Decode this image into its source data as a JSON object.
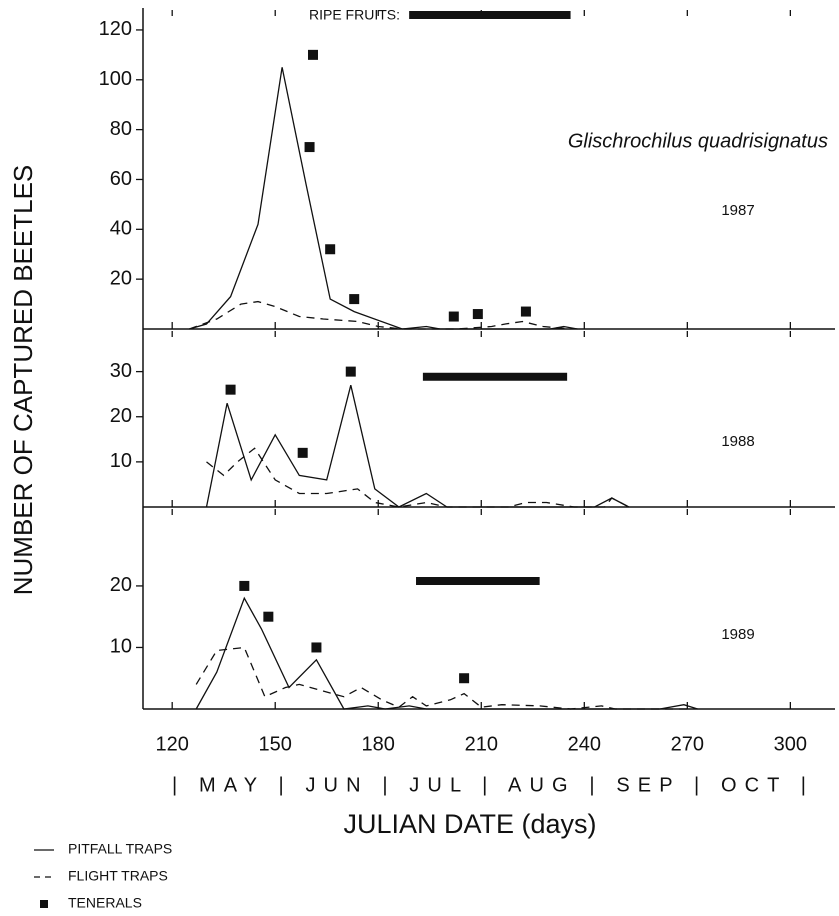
{
  "figure": {
    "y_label": "NUMBER OF CAPTURED BEETLES",
    "x_label": "JULIAN DATE (days)",
    "species": "Glischrochilus quadrisignatus",
    "ripe_label": "RIPE FRUITS:",
    "months": "| MAY | JUN | JUL | AUG | SEP | OCT |"
  },
  "x_axis": {
    "xlim": [
      111.5,
      313
    ],
    "xticks": [
      120,
      150,
      180,
      210,
      240,
      270,
      300
    ]
  },
  "legend": [
    {
      "name": "PITFALL TRAPS",
      "line_style": "solid",
      "color": "#111111"
    },
    {
      "name": "FLIGHT TRAPS",
      "line_style": "dashed",
      "color": "#111111"
    },
    {
      "name": "TENERALS",
      "marker": "square",
      "color": "#111111"
    }
  ],
  "chart_data": [
    {
      "type": "line",
      "annotation": "1987",
      "ylim": [
        0,
        128
      ],
      "yticks": [
        20,
        40,
        60,
        80,
        100,
        120
      ],
      "ripe_fruits": [
        189,
        236
      ],
      "series": [
        {
          "x": [
            125,
            130,
            137,
            145,
            152,
            159,
            166,
            173,
            187,
            194,
            198,
            230,
            234,
            238
          ],
          "values": [
            0,
            2,
            13,
            42,
            105,
            58,
            12,
            7,
            0,
            1,
            0,
            0,
            1,
            0
          ]
        },
        {
          "x": [
            125,
            133,
            140,
            145,
            150,
            157,
            164,
            174,
            180,
            187,
            203,
            213,
            217,
            222,
            228,
            236
          ],
          "values": [
            0,
            4,
            10,
            11,
            9,
            5,
            4,
            3,
            1,
            0,
            0,
            1,
            2,
            3,
            1,
            0
          ]
        },
        {
          "x": [
            161,
            160,
            166,
            173,
            202,
            209,
            223
          ],
          "values": [
            110,
            73,
            32,
            12,
            5,
            6,
            7
          ]
        }
      ]
    },
    {
      "type": "line",
      "annotation": "1988",
      "ylim": [
        0,
        39
      ],
      "yticks": [
        10,
        20,
        30
      ],
      "ripe_fruits": [
        193,
        235
      ],
      "series": [
        {
          "x": [
            130,
            136,
            143,
            150,
            157,
            165,
            172,
            179,
            186,
            194,
            200,
            243,
            248,
            253
          ],
          "values": [
            0,
            23,
            6,
            16,
            7,
            6,
            27,
            4,
            0,
            3,
            0,
            0,
            2,
            0
          ]
        },
        {
          "x": [
            130,
            135,
            139,
            144,
            150,
            157,
            165,
            174,
            179,
            186,
            194,
            200,
            218,
            223,
            229,
            237,
            246,
            248,
            253
          ],
          "values": [
            10,
            7,
            10,
            13,
            6,
            3,
            3,
            4,
            1,
            0,
            1,
            0,
            0,
            1,
            1,
            0,
            0,
            2,
            0
          ]
        },
        {
          "x": [
            137,
            158,
            172
          ],
          "values": [
            26,
            12,
            30
          ]
        }
      ]
    },
    {
      "type": "line",
      "annotation": "1989",
      "ylim": [
        0,
        32.5
      ],
      "yticks": [
        10,
        20
      ],
      "ripe_fruits": [
        191,
        227
      ],
      "series": [
        {
          "x": [
            127,
            133,
            141,
            146,
            154,
            162,
            170,
            177,
            182,
            189,
            194,
            262,
            269,
            273
          ],
          "values": [
            0,
            6,
            18,
            13,
            3.5,
            8,
            0,
            0.5,
            0,
            0.5,
            0,
            0,
            0.7,
            0
          ]
        },
        {
          "x": [
            127,
            133,
            141,
            147,
            153,
            157,
            166,
            170,
            175,
            181,
            186,
            190,
            194,
            201,
            205,
            210,
            216,
            227,
            236,
            245,
            249,
            271
          ],
          "values": [
            4,
            9.5,
            10,
            2,
            3.5,
            4,
            2.6,
            2,
            3.5,
            1.5,
            0.3,
            2,
            0.5,
            1.5,
            2.5,
            0.3,
            0.7,
            0.5,
            0,
            0.5,
            0,
            0
          ]
        },
        {
          "x": [
            141,
            148,
            162,
            205
          ],
          "values": [
            20,
            15,
            10,
            5
          ]
        }
      ]
    }
  ]
}
